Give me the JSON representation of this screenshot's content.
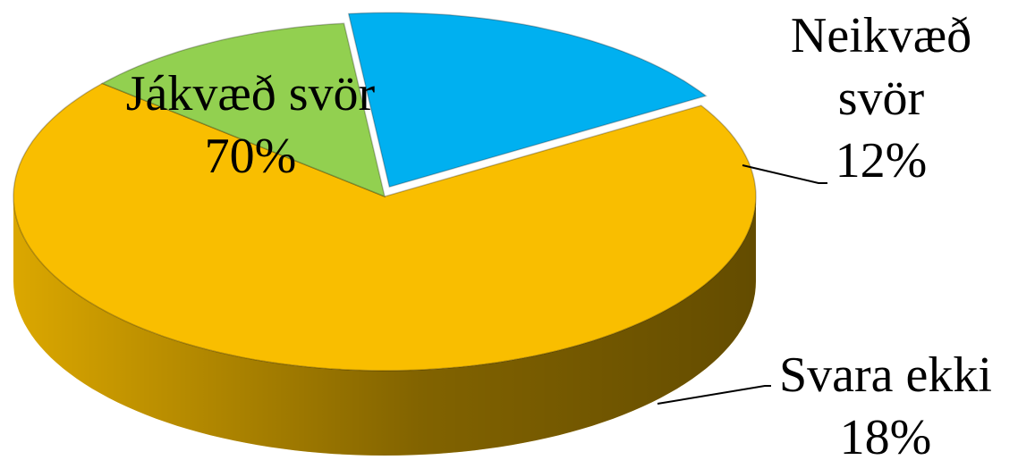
{
  "chart_data": {
    "type": "pie",
    "categories": [
      "Jákvæð svör",
      "Neikvæð svör",
      "Svara ekki"
    ],
    "values": [
      70,
      12,
      18
    ],
    "value_labels": [
      "70%",
      "12%",
      "18%"
    ],
    "colors": [
      "#F9BE00",
      "#92D050",
      "#00B0F0"
    ]
  }
}
